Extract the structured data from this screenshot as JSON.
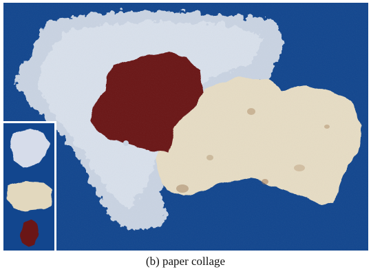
{
  "figure": {
    "caption": "(b)  paper collage",
    "background_color": "#12468e",
    "pieces": [
      {
        "name": "white-fibrous-paper",
        "color": "#c9d3e2"
      },
      {
        "name": "beige-textured-paper",
        "color": "#e6dcc4"
      },
      {
        "name": "dark-red-paper",
        "color": "#6b1416"
      }
    ]
  }
}
